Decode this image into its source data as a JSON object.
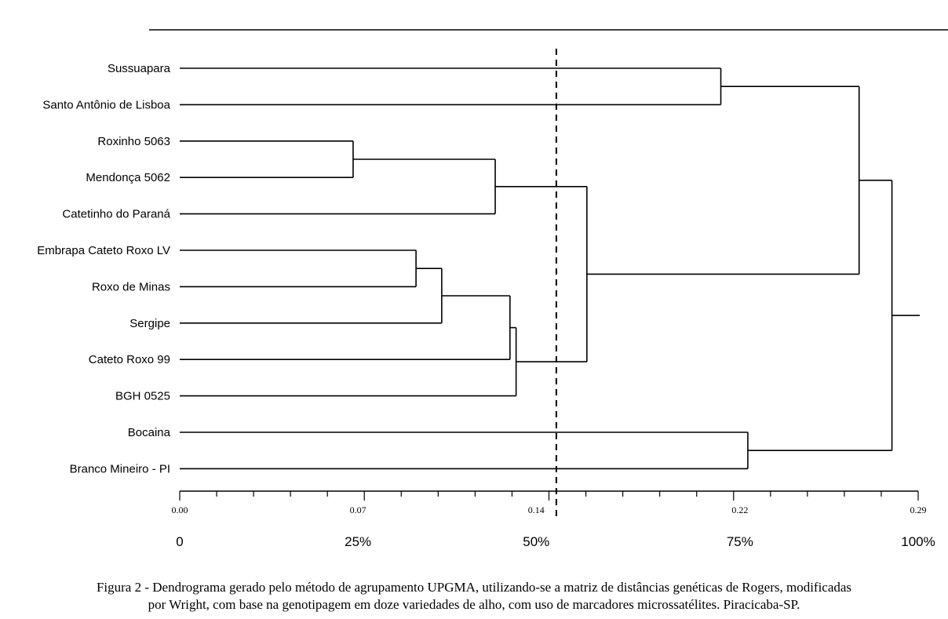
{
  "chart_data": {
    "type": "dendrogram",
    "title": "",
    "xlabel": "",
    "ylabel": "",
    "xlim": [
      0,
      0.29
    ],
    "leaves": [
      "Sussuapara",
      "Santo Antônio de Lisboa",
      "Roxinho 5063",
      "Mendonça 5062",
      "Catetinho do Paraná",
      "Embrapa Cateto Roxo LV",
      "Roxo de Minas",
      "Sergipe",
      "Cateto Roxo 99",
      "BGH 0525",
      "Bocaina",
      "Branco Mineiro - PI"
    ],
    "merges": [
      {
        "a": "L0",
        "b": "L1",
        "height": 0.2125
      },
      {
        "a": "L2",
        "b": "L3",
        "height": 0.0681
      },
      {
        "a": "M1",
        "b": "L4",
        "height": 0.1239
      },
      {
        "a": "L5",
        "b": "L6",
        "height": 0.0928
      },
      {
        "a": "M3",
        "b": "L7",
        "height": 0.1029
      },
      {
        "a": "M4",
        "b": "L8",
        "height": 0.1297
      },
      {
        "a": "M5",
        "b": "L9",
        "height": 0.1321
      },
      {
        "a": "M2",
        "b": "M6",
        "height": 0.1599
      },
      {
        "a": "M0",
        "b": "M7",
        "height": 0.2668
      },
      {
        "a": "L10",
        "b": "L11",
        "height": 0.2231
      },
      {
        "a": "M8",
        "b": "M9",
        "height": 0.2797
      }
    ],
    "x_ticks": [
      "0.00",
      "0.07",
      "0.14",
      "0.22",
      "0.29"
    ],
    "x_tick_values": [
      0.0,
      0.07,
      0.14,
      0.22,
      0.29
    ],
    "percent_labels": [
      "0",
      "25%",
      "50%",
      "75%",
      "100%"
    ],
    "cut_line": 0.1479
  },
  "caption": {
    "line1": "Figura 2 - Dendrograma gerado pelo método de agrupamento UPGMA, utilizando-se a matriz de distâncias genéticas de Rogers, modificadas",
    "line2": "por Wright, com base na genotipagem em doze variedades de alho, com uso de marcadores microssatélites. Piracicaba-SP."
  }
}
